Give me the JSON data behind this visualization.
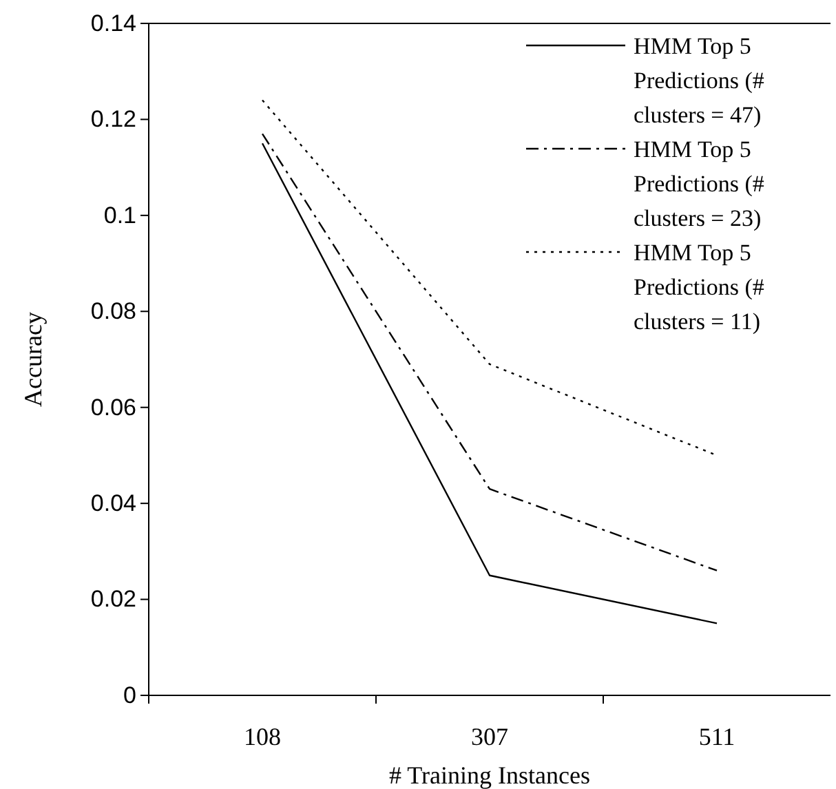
{
  "chart_data": {
    "type": "line",
    "xlabel": "# Training Instances",
    "ylabel": "Accuracy",
    "categories": [
      "108",
      "307",
      "511"
    ],
    "series": [
      {
        "name": "HMM Top 5 Predictions (# clusters = 47)",
        "color": "#000000",
        "line_style": "solid",
        "values": [
          0.115,
          0.025,
          0.015
        ]
      },
      {
        "name": "HMM Top 5 Predictions (# clusters = 23)",
        "color": "#000000",
        "line_style": "dashed",
        "values": [
          0.117,
          0.043,
          0.026
        ]
      },
      {
        "name": "HMM Top 5 Predictions (# clusters = 11)",
        "color": "#000000",
        "line_style": "dotted",
        "values": [
          0.124,
          0.069,
          0.05
        ]
      }
    ],
    "ylim": [
      0,
      0.14
    ],
    "yticks": [
      0,
      0.02,
      0.04,
      0.06,
      0.08,
      {
        "value": 0.1,
        "label": "0.1"
      },
      0.12,
      0.14
    ],
    "legend": "top right",
    "grid": false,
    "marker": "none"
  }
}
